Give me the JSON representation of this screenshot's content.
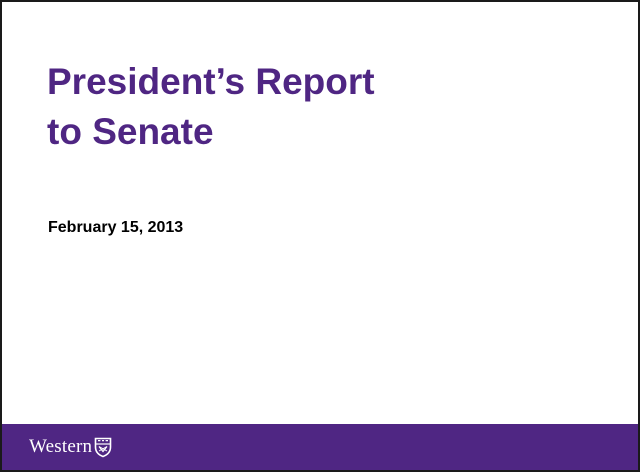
{
  "slide": {
    "title_lines": [
      "President’s Report",
      "to Senate"
    ],
    "date": "February 15, 2013"
  },
  "footer": {
    "wordmark": "Western",
    "crest_icon": "university-crest-icon"
  },
  "colors": {
    "brand_purple": "#4f2683",
    "text": "#000000",
    "background": "#ffffff"
  }
}
